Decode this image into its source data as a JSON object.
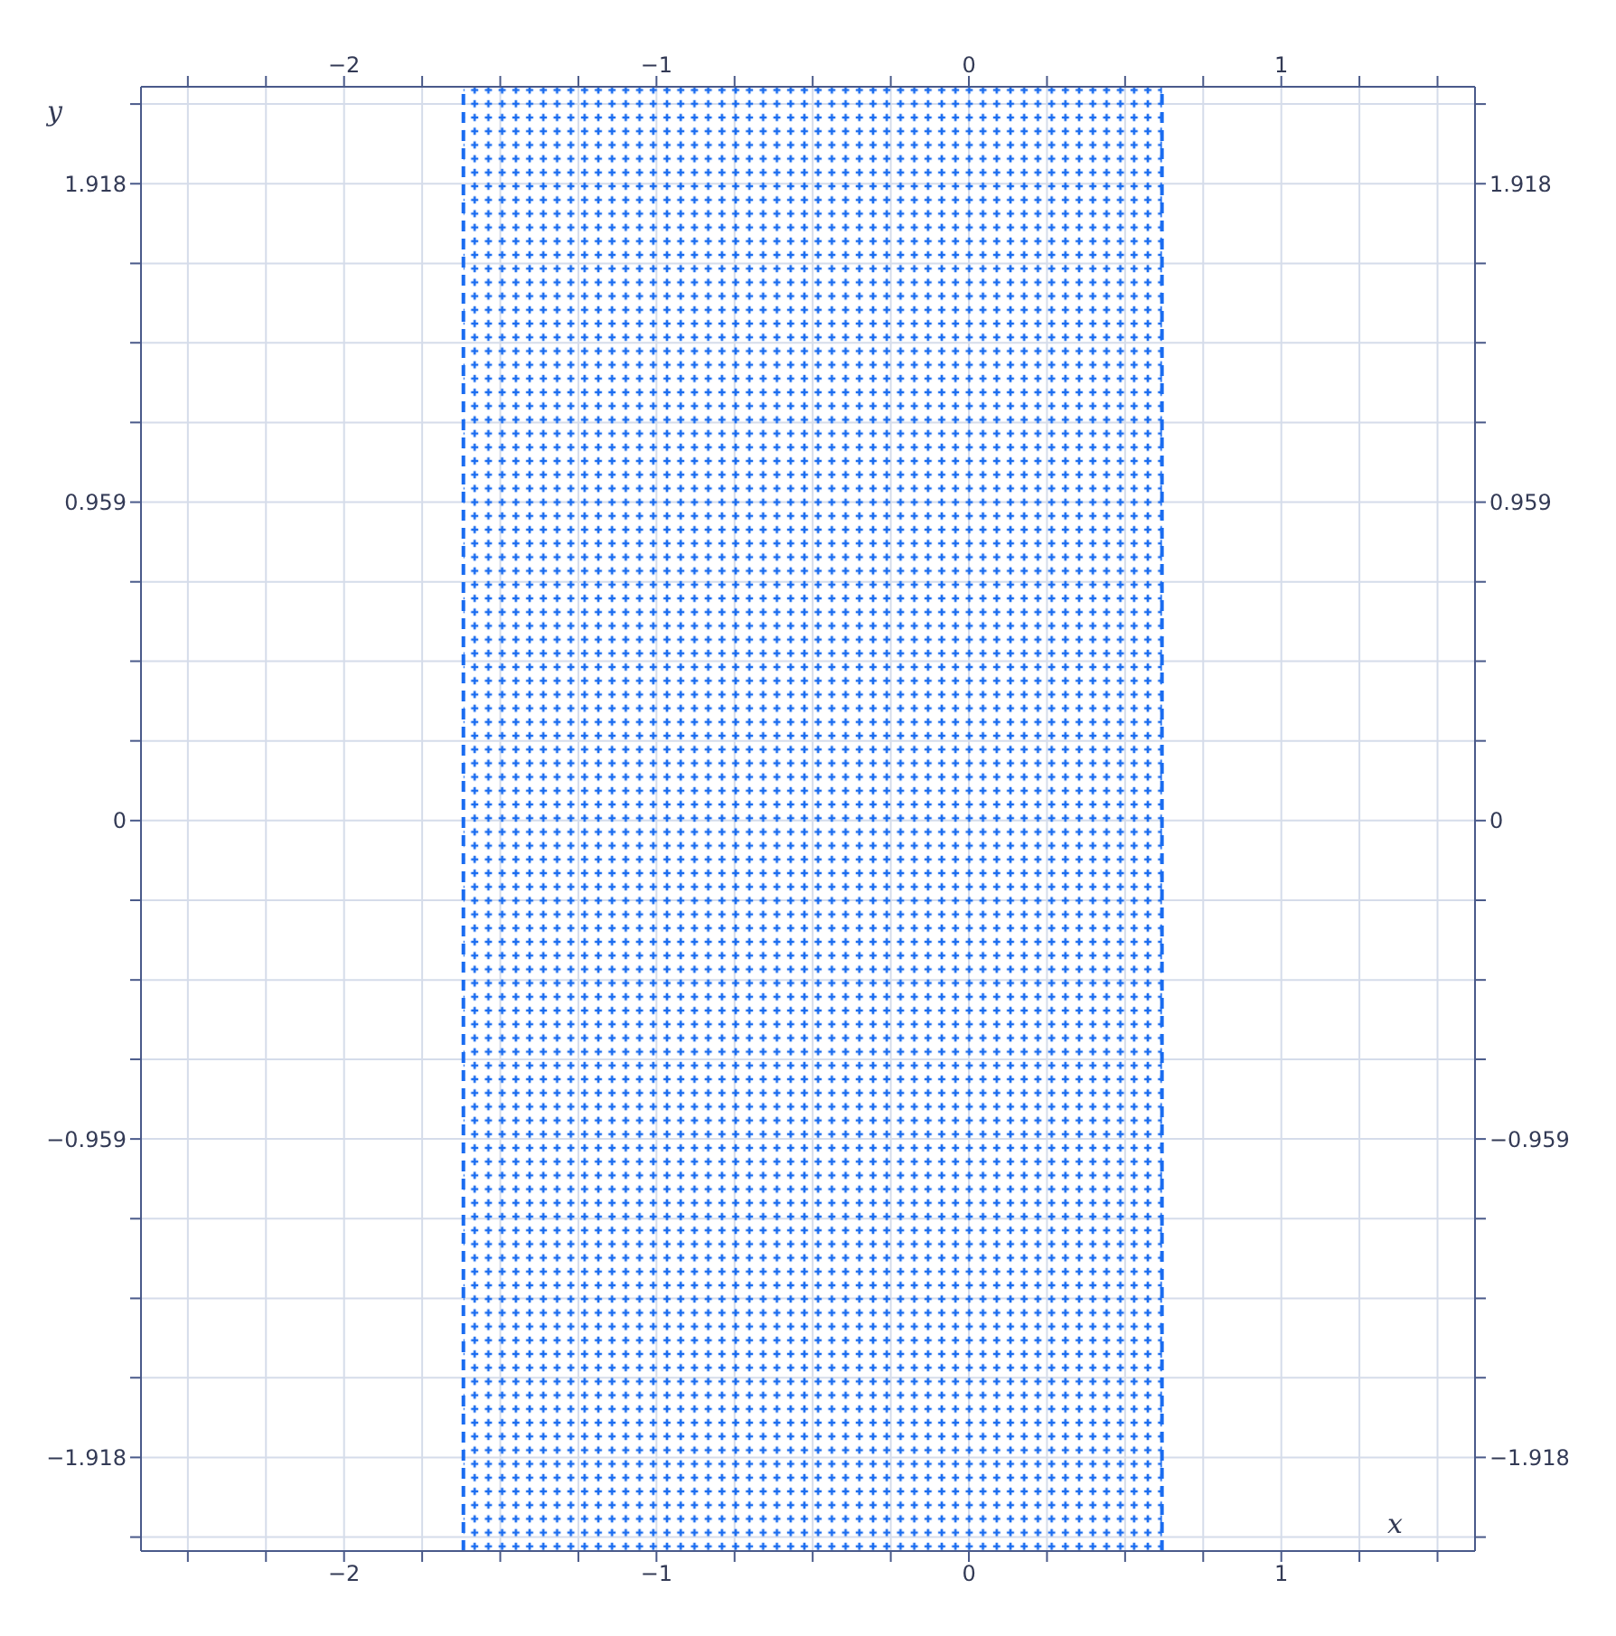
{
  "chart_data": {
    "type": "line",
    "xlabel": "x",
    "ylabel": "y",
    "grid": true,
    "xlim": [
      -2.65,
      1.62
    ],
    "ylim": [
      -2.2,
      2.21
    ],
    "x2lim": [
      -2.65,
      1.62
    ],
    "y2lim": [
      -2.2,
      2.21
    ],
    "xticks": [
      {
        "value": -2.5,
        "label": null
      },
      {
        "value": -2.25,
        "label": null
      },
      {
        "value": -2,
        "label": "−2"
      },
      {
        "value": -1.75,
        "label": null
      },
      {
        "value": -1.5,
        "label": null
      },
      {
        "value": -1.25,
        "label": null
      },
      {
        "value": -1,
        "label": "−1"
      },
      {
        "value": -0.75,
        "label": null
      },
      {
        "value": -0.5,
        "label": null
      },
      {
        "value": -0.25,
        "label": null
      },
      0,
      {
        "value": 0.25,
        "label": null
      },
      {
        "value": 0.5,
        "label": null
      },
      {
        "value": 0.75,
        "label": null
      },
      1,
      {
        "value": 1.25,
        "label": null
      },
      {
        "value": 1.5,
        "label": null
      }
    ],
    "x2ticks": [
      {
        "value": -2.5,
        "label": null
      },
      {
        "value": -2.25,
        "label": null
      },
      {
        "value": -2,
        "label": "−2"
      },
      {
        "value": -1.75,
        "label": null
      },
      {
        "value": -1.5,
        "label": null
      },
      {
        "value": -1.25,
        "label": null
      },
      {
        "value": -1,
        "label": "−1"
      },
      {
        "value": -0.75,
        "label": null
      },
      {
        "value": -0.5,
        "label": null
      },
      {
        "value": -0.25,
        "label": null
      },
      0,
      {
        "value": 0.25,
        "label": null
      },
      {
        "value": 0.5,
        "label": null
      },
      {
        "value": 0.75,
        "label": null
      },
      1,
      {
        "value": 1.25,
        "label": null
      },
      {
        "value": 1.5,
        "label": null
      }
    ],
    "yticks": [
      {
        "value": -2.158,
        "label": null
      },
      {
        "value": -1.918,
        "label": "−1.918"
      },
      {
        "value": -1.678,
        "label": null
      },
      {
        "value": -1.439,
        "label": null
      },
      {
        "value": -1.199,
        "label": null
      },
      {
        "value": -0.959,
        "label": "−0.959"
      },
      {
        "value": -0.719,
        "label": null
      },
      {
        "value": -0.48,
        "label": null
      },
      {
        "value": -0.24,
        "label": null
      },
      {
        "value": 0,
        "label": "0"
      },
      {
        "value": 0.24,
        "label": null
      },
      {
        "value": 0.48,
        "label": null
      },
      {
        "value": 0.719,
        "label": null
      },
      {
        "value": 0.959,
        "label": "0.959"
      },
      {
        "value": 1.199,
        "label": null
      },
      {
        "value": 1.439,
        "label": null
      },
      {
        "value": 1.678,
        "label": null
      },
      {
        "value": 1.918,
        "label": "1.918"
      },
      {
        "value": 2.158,
        "label": null
      }
    ],
    "y2ticks": [
      {
        "value": -2.158,
        "label": null
      },
      {
        "value": -1.918,
        "label": "−1.918"
      },
      {
        "value": -1.678,
        "label": null
      },
      {
        "value": -1.439,
        "label": null
      },
      {
        "value": -1.199,
        "label": null
      },
      {
        "value": -0.959,
        "label": "−0.959"
      },
      {
        "value": -0.719,
        "label": null
      },
      {
        "value": -0.48,
        "label": null
      },
      {
        "value": -0.24,
        "label": null
      },
      {
        "value": 0,
        "label": "0"
      },
      {
        "value": 0.24,
        "label": null
      },
      {
        "value": 0.48,
        "label": null
      },
      {
        "value": 0.719,
        "label": null
      },
      {
        "value": 0.959,
        "label": "0.959"
      },
      {
        "value": 1.199,
        "label": null
      },
      {
        "value": 1.439,
        "label": null
      },
      {
        "value": 1.678,
        "label": null
      },
      {
        "value": 1.918,
        "label": "1.918"
      },
      {
        "value": 2.158,
        "label": null
      }
    ],
    "bands": [
      {
        "axis": "x",
        "from": -1.618,
        "to": 0.618,
        "color": "#1a6cf0"
      }
    ],
    "ref_lines": [
      {
        "axis": "x",
        "value": -1.618,
        "color": "#1a6cf0",
        "line_style": "dashed"
      },
      {
        "axis": "x",
        "value": 0.618,
        "color": "#1a6cf0",
        "line_style": "dashed"
      }
    ]
  }
}
